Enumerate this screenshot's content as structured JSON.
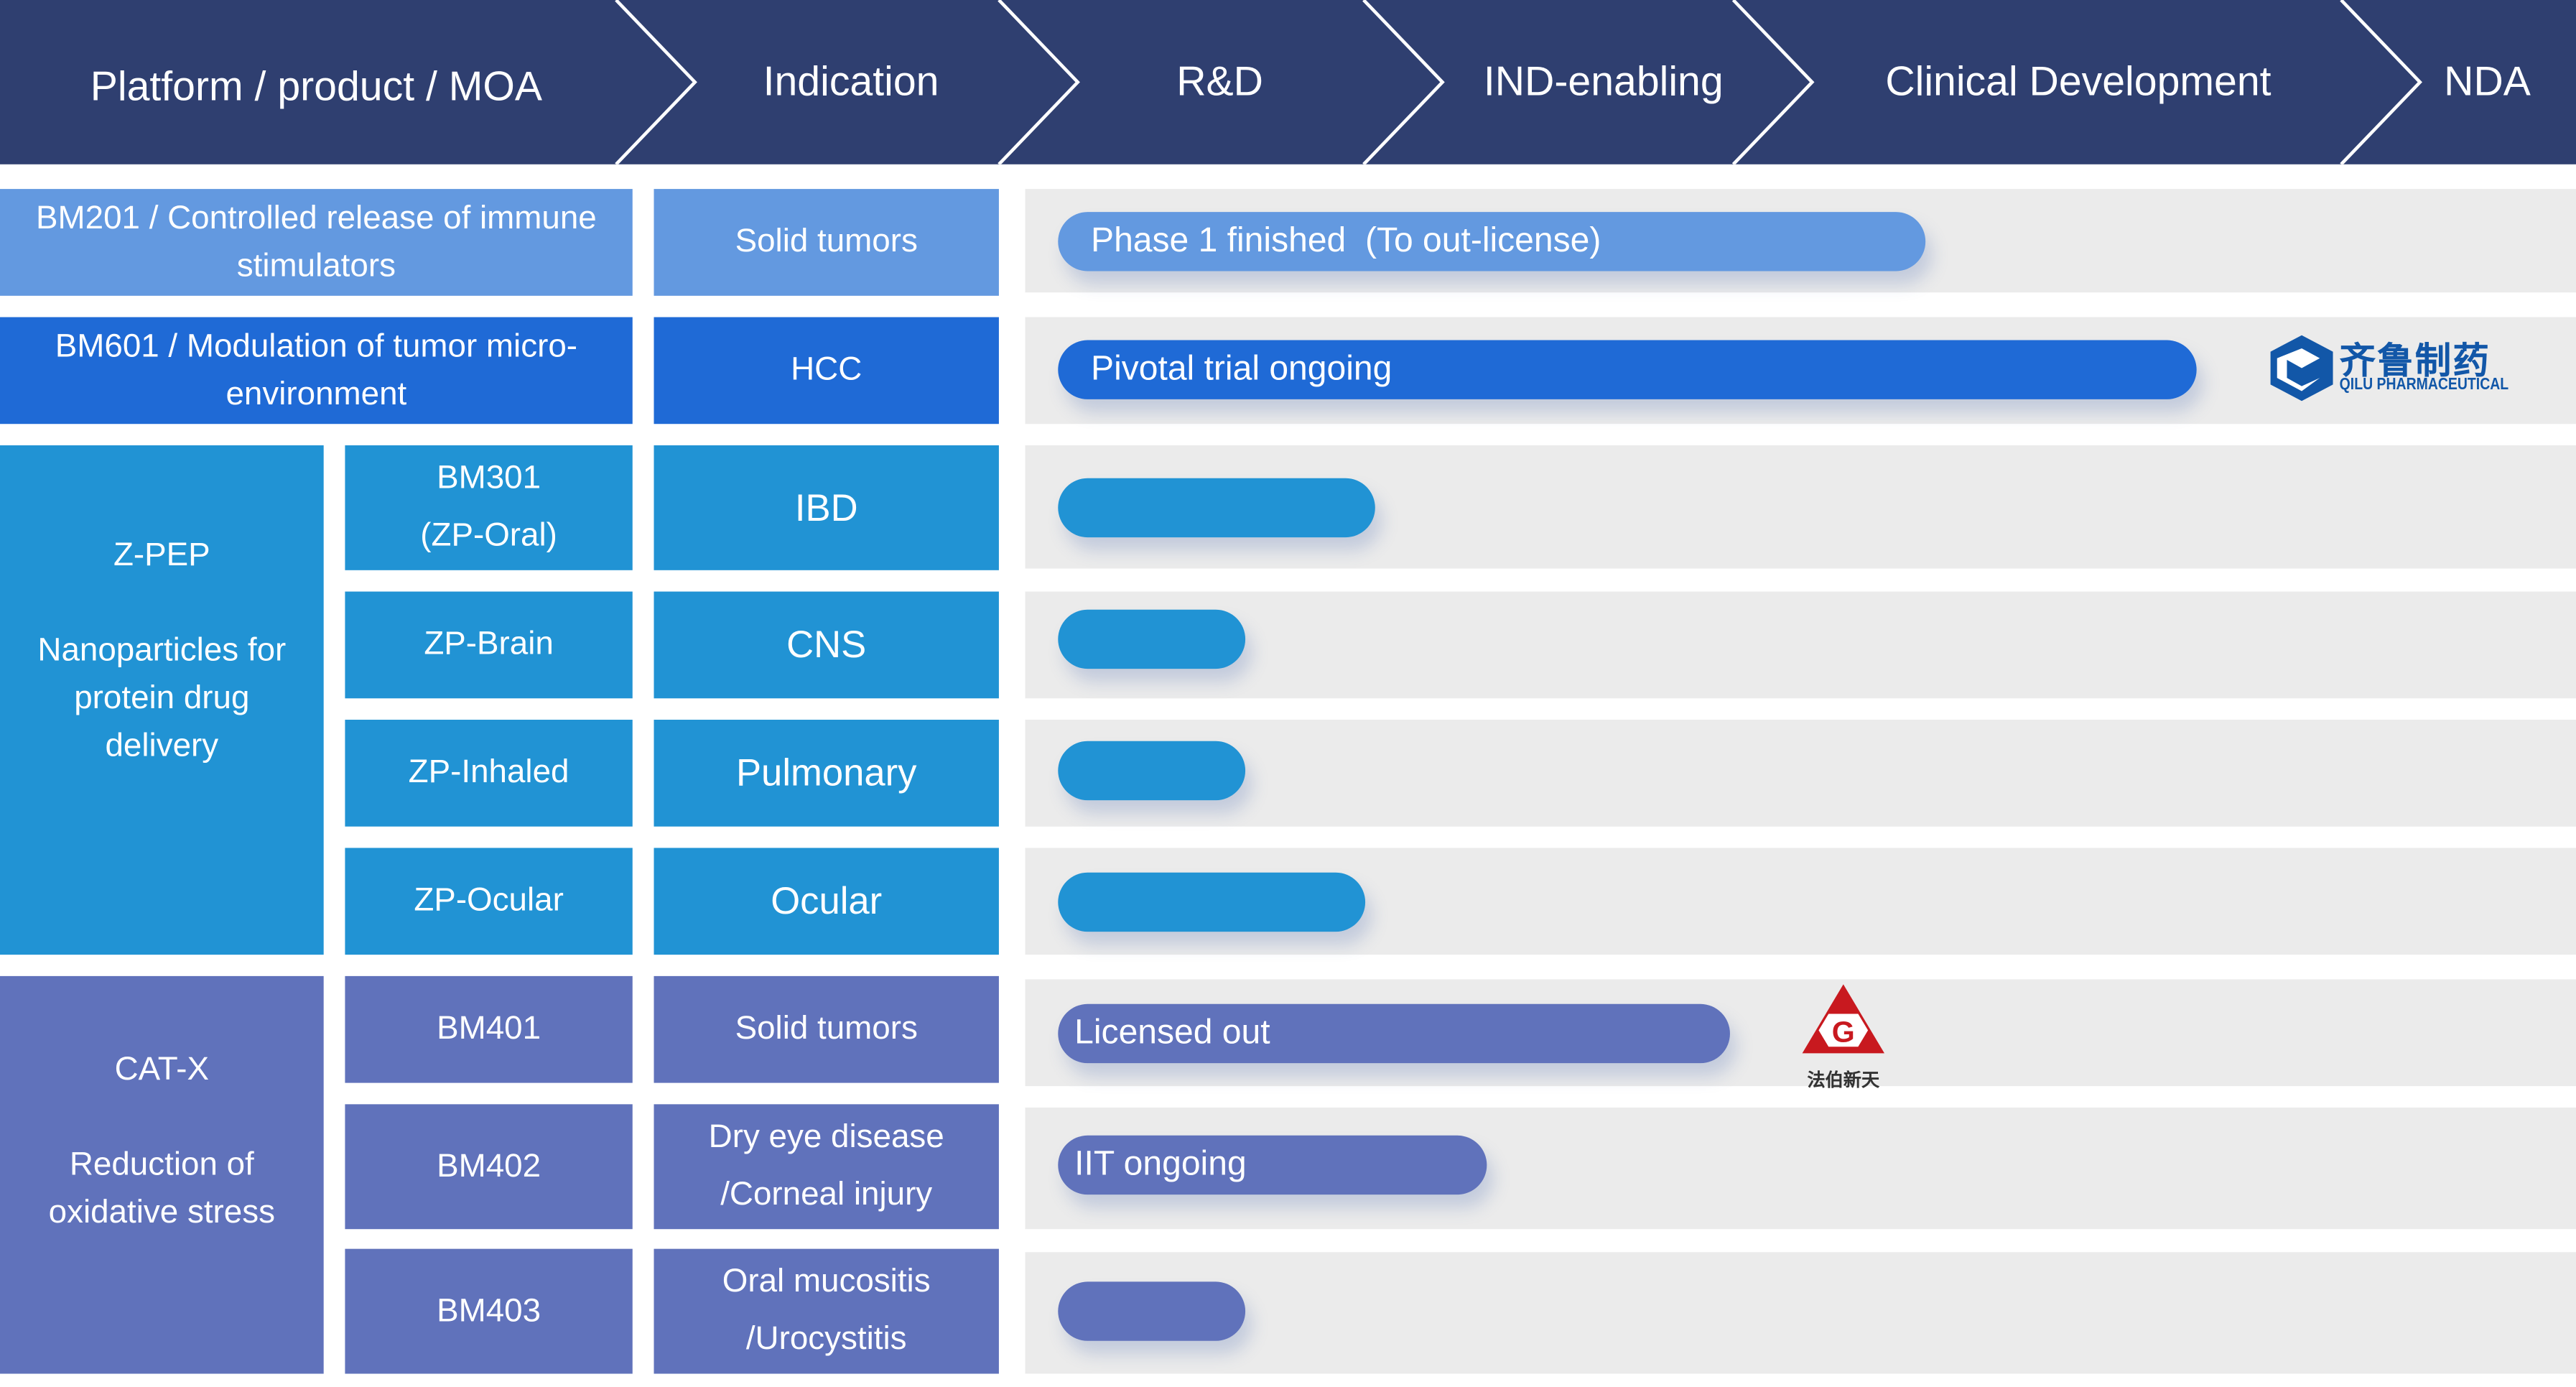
{
  "header": {
    "columns": [
      "Platform / product / MOA",
      "Indication",
      "R&D",
      "IND-enabling",
      "Clinical Development",
      "NDA"
    ]
  },
  "colors": {
    "header": "#2f3f70",
    "bm201": "#6399e0",
    "bm601": "#1f6ad6",
    "zpep": "#2193d4",
    "catx": "#6072bb",
    "lane": "#ebebeb"
  },
  "rows": [
    {
      "product": "BM201 / Controlled release of immune stimulators",
      "indication": "Solid tumors",
      "bar_label": "Phase 1 finished  (To out-license)",
      "progress": 0.58
    },
    {
      "product": "BM601 / Modulation of tumor micro-environment",
      "indication": "HCC",
      "bar_label": "Pivotal trial ongoing",
      "progress": 0.755,
      "partner": {
        "name_cn": "齐鲁制药",
        "name_en": "QILU PHARMACEUTICAL"
      }
    }
  ],
  "zpep": {
    "platform": "Z-PEP",
    "moa": "Nanoparticles for protein drug delivery",
    "rows": [
      {
        "product": "BM301\n(ZP-Oral)",
        "indication": "IBD",
        "progress": 0.226
      },
      {
        "product": "ZP-Brain",
        "indication": "CNS",
        "progress": 0.142
      },
      {
        "product": "ZP-Inhaled",
        "indication": "Pulmonary",
        "progress": 0.142
      },
      {
        "product": "ZP-Ocular",
        "indication": "Ocular",
        "progress": 0.219
      }
    ]
  },
  "catx": {
    "platform": "CAT-X",
    "moa": "Reduction of oxidative stress",
    "rows": [
      {
        "product": "BM401",
        "indication": "Solid tumors",
        "bar_label": "Licensed out",
        "progress": 0.454,
        "partner": {
          "name_cn": "法伯新天"
        }
      },
      {
        "product": "BM402",
        "indication": "Dry eye disease\n/Corneal injury",
        "bar_label": "IIT ongoing",
        "progress": 0.298
      },
      {
        "product": "BM403",
        "indication": "Oral mucositis\n/Urocystitis",
        "progress": 0.142
      }
    ]
  }
}
